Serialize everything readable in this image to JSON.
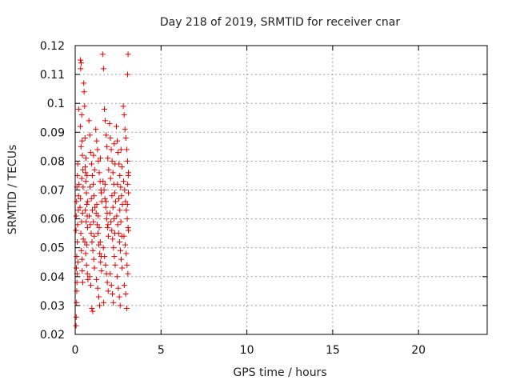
{
  "chart_data": {
    "type": "scatter",
    "title": "Day 218 of 2019, SRMTID for receiver cnar",
    "xlabel": "GPS time / hours",
    "ylabel": "SRMTID / TECUs",
    "xlim": [
      0,
      24
    ],
    "ylim": [
      0.02,
      0.12
    ],
    "xticks": [
      0,
      5,
      10,
      15,
      20
    ],
    "xtick_labels": [
      "0",
      "5",
      "10",
      "15",
      "20"
    ],
    "yticks": [
      0.02,
      0.03,
      0.04,
      0.05,
      0.06,
      0.07,
      0.08,
      0.09,
      0.1,
      0.11,
      0.12
    ],
    "ytick_labels": [
      "0.02",
      "0.03",
      "0.04",
      "0.05",
      "0.06",
      "0.07",
      "0.08",
      "0.09",
      "0.1",
      "0.11",
      "0.12"
    ],
    "grid": true,
    "marker": "plus",
    "colors": {
      "points": "#e00000",
      "grid": "#a0a0a0",
      "frame": "#000000"
    },
    "series": [
      {
        "x": [
          0.05,
          0.06,
          0.08,
          0.1,
          0.07,
          0.09,
          0.12,
          0.05,
          0.06,
          0.08,
          0.1,
          0.13,
          0.15,
          0.09,
          0.11,
          0.14,
          0.18,
          0.2,
          0.22,
          0.16,
          0.19,
          0.3,
          0.32,
          0.35,
          0.38,
          0.4,
          0.42,
          0.45,
          0.28,
          0.33,
          0.36,
          0.41,
          0.44,
          0.3,
          0.34,
          0.38,
          0.43,
          0.47,
          0.31,
          0.37,
          0.4,
          0.46,
          0.5,
          0.52,
          0.55,
          0.58,
          0.6,
          0.62,
          0.65,
          0.68,
          0.7,
          0.72,
          0.56,
          0.61,
          0.66,
          0.71,
          0.74,
          0.57,
          0.63,
          0.69,
          0.73,
          0.59,
          0.64,
          0.67,
          0.8,
          0.85,
          0.9,
          0.95,
          1.0,
          1.05,
          1.1,
          1.15,
          0.82,
          0.88,
          0.93,
          0.98,
          1.03,
          1.08,
          1.12,
          0.84,
          0.91,
          0.97,
          1.02,
          1.07,
          1.13,
          0.86,
          0.94,
          1.0,
          1.06,
          1.11,
          1.2,
          1.25,
          1.3,
          1.35,
          1.4,
          1.45,
          1.5,
          1.55,
          1.22,
          1.28,
          1.33,
          1.38,
          1.43,
          1.48,
          1.53,
          1.24,
          1.31,
          1.37,
          1.42,
          1.47,
          1.52,
          1.26,
          1.34,
          1.4,
          1.46,
          1.51,
          1.6,
          1.65,
          1.7,
          1.75,
          1.8,
          1.85,
          1.9,
          1.95,
          1.62,
          1.68,
          1.73,
          1.78,
          1.83,
          1.88,
          1.93,
          1.64,
          1.71,
          1.77,
          1.82,
          1.87,
          1.92,
          1.66,
          1.74,
          1.8,
          1.86,
          1.91,
          2.0,
          2.05,
          2.1,
          2.15,
          2.2,
          2.25,
          2.3,
          2.35,
          2.02,
          2.08,
          2.13,
          2.18,
          2.23,
          2.28,
          2.33,
          2.04,
          2.11,
          2.17,
          2.22,
          2.27,
          2.32,
          2.06,
          2.14,
          2.2,
          2.26,
          2.31,
          2.4,
          2.45,
          2.5,
          2.55,
          2.6,
          2.65,
          2.7,
          2.75,
          2.42,
          2.48,
          2.53,
          2.58,
          2.63,
          2.68,
          2.73,
          2.44,
          2.51,
          2.57,
          2.62,
          2.67,
          2.72,
          2.46,
          2.54,
          2.6,
          2.66,
          2.71,
          2.8,
          2.85,
          2.9,
          2.95,
          3.0,
          3.05,
          3.1,
          2.82,
          2.88,
          2.93,
          2.98,
          3.03,
          3.08,
          2.84,
          2.91,
          2.97,
          3.02,
          3.07,
          2.86,
          2.94,
          3.0,
          3.06,
          3.1,
          3.08,
          3.05,
          3.09,
          3.04,
          3.1
        ],
        "y": [
          0.023,
          0.026,
          0.031,
          0.038,
          0.043,
          0.047,
          0.052,
          0.056,
          0.061,
          0.066,
          0.071,
          0.075,
          0.079,
          0.035,
          0.041,
          0.058,
          0.063,
          0.098,
          0.072,
          0.045,
          0.068,
          0.115,
          0.112,
          0.114,
          0.096,
          0.087,
          0.082,
          0.077,
          0.064,
          0.055,
          0.049,
          0.042,
          0.038,
          0.092,
          0.085,
          0.074,
          0.062,
          0.053,
          0.067,
          0.059,
          0.046,
          0.071,
          0.107,
          0.104,
          0.099,
          0.078,
          0.076,
          0.073,
          0.069,
          0.065,
          0.061,
          0.057,
          0.052,
          0.048,
          0.044,
          0.041,
          0.039,
          0.088,
          0.081,
          0.075,
          0.066,
          0.063,
          0.059,
          0.051,
          0.094,
          0.089,
          0.083,
          0.079,
          0.075,
          0.072,
          0.068,
          0.064,
          0.061,
          0.058,
          0.055,
          0.052,
          0.049,
          0.046,
          0.043,
          0.04,
          0.037,
          0.029,
          0.028,
          0.082,
          0.077,
          0.071,
          0.067,
          0.063,
          0.059,
          0.054,
          0.091,
          0.087,
          0.084,
          0.08,
          0.076,
          0.073,
          0.07,
          0.066,
          0.062,
          0.058,
          0.055,
          0.051,
          0.048,
          0.045,
          0.042,
          0.039,
          0.036,
          0.033,
          0.03,
          0.081,
          0.069,
          0.065,
          0.061,
          0.057,
          0.052,
          0.047,
          0.117,
          0.112,
          0.098,
          0.094,
          0.089,
          0.085,
          0.081,
          0.077,
          0.073,
          0.07,
          0.067,
          0.064,
          0.06,
          0.057,
          0.054,
          0.05,
          0.047,
          0.044,
          0.041,
          0.038,
          0.035,
          0.031,
          0.072,
          0.066,
          0.062,
          0.058,
          0.093,
          0.088,
          0.084,
          0.08,
          0.076,
          0.072,
          0.069,
          0.066,
          0.062,
          0.059,
          0.056,
          0.053,
          0.05,
          0.047,
          0.044,
          0.041,
          0.037,
          0.034,
          0.031,
          0.086,
          0.079,
          0.074,
          0.068,
          0.064,
          0.06,
          0.055,
          0.092,
          0.087,
          0.083,
          0.079,
          0.075,
          0.071,
          0.068,
          0.065,
          0.061,
          0.058,
          0.055,
          0.052,
          0.049,
          0.046,
          0.043,
          0.04,
          0.036,
          0.033,
          0.03,
          0.084,
          0.078,
          0.072,
          0.067,
          0.063,
          0.059,
          0.054,
          0.099,
          0.096,
          0.091,
          0.088,
          0.084,
          0.08,
          0.076,
          0.073,
          0.07,
          0.066,
          0.063,
          0.06,
          0.057,
          0.054,
          0.051,
          0.048,
          0.044,
          0.041,
          0.037,
          0.034,
          0.029,
          0.072,
          0.069,
          0.117,
          0.11,
          0.075,
          0.065,
          0.056
        ]
      }
    ]
  }
}
